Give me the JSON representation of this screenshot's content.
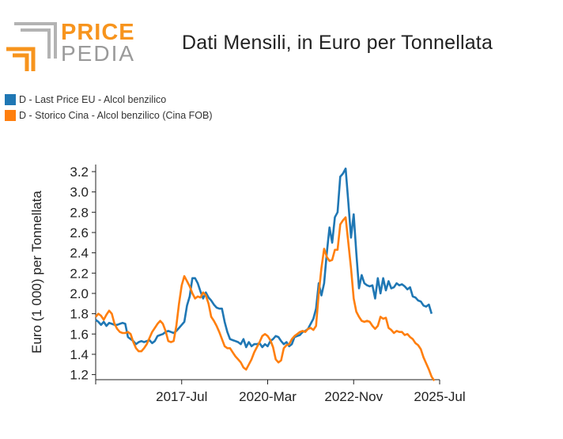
{
  "logo": {
    "line1": "PRICE",
    "line2": "PEDIA",
    "accent": "#f7941d",
    "gray": "#b3b3b3"
  },
  "title": "Dati Mensili, in Euro per Tonnellata",
  "legend": [
    {
      "label": "D - Last Price EU - Alcol benzilico",
      "color": "#1f77b4"
    },
    {
      "label": "D - Storico Cina - Alcol benzilico (Cina FOB)",
      "color": "#ff7f0e"
    }
  ],
  "chart_data": {
    "type": "line",
    "title": "Dati Mensili, in Euro per Tonnellata",
    "xlabel": "",
    "ylabel": "Euro (1 000) per Tonnellata",
    "x_ticks": [
      "2017-Jul",
      "2020-Mar",
      "2022-Nov",
      "2025-Jul"
    ],
    "y_ticks": [
      "1.2",
      "1.4",
      "1.6",
      "1.8",
      "2.0",
      "2.2",
      "2.4",
      "2.6",
      "2.8",
      "3.0",
      "3.2"
    ],
    "ylim": [
      1.15,
      3.27
    ],
    "xlim": [
      "2014-11",
      "2025-07"
    ],
    "grid": false,
    "legend_position": "top-left",
    "series": [
      {
        "name": "D - Last Price EU - Alcol benzilico",
        "color": "#1f77b4",
        "points": [
          [
            "2014-11",
            1.74
          ],
          [
            "2014-12",
            1.72
          ],
          [
            "2015-01",
            1.69
          ],
          [
            "2015-02",
            1.72
          ],
          [
            "2015-03",
            1.68
          ],
          [
            "2015-04",
            1.71
          ],
          [
            "2015-05",
            1.7
          ],
          [
            "2015-06",
            1.69
          ],
          [
            "2015-07",
            1.69
          ],
          [
            "2015-08",
            1.7
          ],
          [
            "2015-09",
            1.71
          ],
          [
            "2015-10",
            1.7
          ],
          [
            "2015-11",
            1.57
          ],
          [
            "2015-12",
            1.55
          ],
          [
            "2016-01",
            1.53
          ],
          [
            "2016-02",
            1.5
          ],
          [
            "2016-03",
            1.52
          ],
          [
            "2016-04",
            1.53
          ],
          [
            "2016-05",
            1.52
          ],
          [
            "2016-06",
            1.53
          ],
          [
            "2016-07",
            1.54
          ],
          [
            "2016-08",
            1.51
          ],
          [
            "2016-09",
            1.53
          ],
          [
            "2016-10",
            1.58
          ],
          [
            "2016-11",
            1.59
          ],
          [
            "2016-12",
            1.6
          ],
          [
            "2017-01",
            1.62
          ],
          [
            "2017-02",
            1.63
          ],
          [
            "2017-03",
            1.62
          ],
          [
            "2017-04",
            1.61
          ],
          [
            "2017-05",
            1.63
          ],
          [
            "2017-06",
            1.66
          ],
          [
            "2017-07",
            1.69
          ],
          [
            "2017-08",
            1.72
          ],
          [
            "2017-09",
            1.88
          ],
          [
            "2017-10",
            1.97
          ],
          [
            "2017-11",
            2.15
          ],
          [
            "2017-12",
            2.15
          ],
          [
            "2018-01",
            2.1
          ],
          [
            "2018-02",
            2.02
          ],
          [
            "2018-03",
            1.95
          ],
          [
            "2018-04",
            2.01
          ],
          [
            "2018-05",
            1.96
          ],
          [
            "2018-06",
            1.93
          ],
          [
            "2018-07",
            1.89
          ],
          [
            "2018-08",
            1.86
          ],
          [
            "2018-09",
            1.85
          ],
          [
            "2018-10",
            1.85
          ],
          [
            "2018-11",
            1.72
          ],
          [
            "2018-12",
            1.62
          ],
          [
            "2019-01",
            1.55
          ],
          [
            "2019-02",
            1.54
          ],
          [
            "2019-03",
            1.53
          ],
          [
            "2019-04",
            1.52
          ],
          [
            "2019-05",
            1.5
          ],
          [
            "2019-06",
            1.55
          ],
          [
            "2019-07",
            1.47
          ],
          [
            "2019-08",
            1.52
          ],
          [
            "2019-09",
            1.48
          ],
          [
            "2019-10",
            1.5
          ],
          [
            "2019-11",
            1.5
          ],
          [
            "2019-12",
            1.51
          ],
          [
            "2020-01",
            1.47
          ],
          [
            "2020-02",
            1.5
          ],
          [
            "2020-03",
            1.48
          ],
          [
            "2020-04",
            1.53
          ],
          [
            "2020-05",
            1.55
          ],
          [
            "2020-06",
            1.58
          ],
          [
            "2020-07",
            1.57
          ],
          [
            "2020-08",
            1.53
          ],
          [
            "2020-09",
            1.5
          ],
          [
            "2020-10",
            1.52
          ],
          [
            "2020-11",
            1.48
          ],
          [
            "2020-12",
            1.5
          ],
          [
            "2021-01",
            1.57
          ],
          [
            "2021-02",
            1.58
          ],
          [
            "2021-03",
            1.59
          ],
          [
            "2021-04",
            1.62
          ],
          [
            "2021-05",
            1.63
          ],
          [
            "2021-06",
            1.65
          ],
          [
            "2021-07",
            1.7
          ],
          [
            "2021-08",
            1.75
          ],
          [
            "2021-09",
            1.85
          ],
          [
            "2021-10",
            2.1
          ],
          [
            "2021-11",
            1.98
          ],
          [
            "2021-12",
            2.1
          ],
          [
            "2022-01",
            2.4
          ],
          [
            "2022-02",
            2.65
          ],
          [
            "2022-03",
            2.5
          ],
          [
            "2022-04",
            2.75
          ],
          [
            "2022-05",
            2.8
          ],
          [
            "2022-06",
            3.15
          ],
          [
            "2022-07",
            3.18
          ],
          [
            "2022-08",
            3.23
          ],
          [
            "2022-09",
            2.9
          ],
          [
            "2022-10",
            2.55
          ],
          [
            "2022-11",
            2.78
          ],
          [
            "2022-12",
            2.4
          ],
          [
            "2023-01",
            2.05
          ],
          [
            "2023-02",
            2.18
          ],
          [
            "2023-03",
            2.1
          ],
          [
            "2023-04",
            2.08
          ],
          [
            "2023-05",
            2.07
          ],
          [
            "2023-06",
            2.08
          ],
          [
            "2023-07",
            1.95
          ],
          [
            "2023-08",
            2.15
          ],
          [
            "2023-09",
            2.0
          ],
          [
            "2023-10",
            2.15
          ],
          [
            "2023-11",
            2.03
          ],
          [
            "2023-12",
            2.12
          ],
          [
            "2024-01",
            2.05
          ],
          [
            "2024-02",
            2.06
          ],
          [
            "2024-03",
            2.1
          ],
          [
            "2024-04",
            2.08
          ],
          [
            "2024-05",
            2.09
          ],
          [
            "2024-06",
            2.07
          ],
          [
            "2024-07",
            2.04
          ],
          [
            "2024-08",
            2.06
          ],
          [
            "2024-09",
            1.97
          ],
          [
            "2024-10",
            1.96
          ],
          [
            "2024-11",
            1.93
          ],
          [
            "2024-12",
            1.92
          ],
          [
            "2025-01",
            1.88
          ],
          [
            "2025-02",
            1.87
          ],
          [
            "2025-03",
            1.89
          ],
          [
            "2025-04",
            1.8
          ]
        ]
      },
      {
        "name": "D - Storico Cina - Alcol benzilico (Cina FOB)",
        "color": "#ff7f0e",
        "points": [
          [
            "2014-11",
            1.77
          ],
          [
            "2014-12",
            1.8
          ],
          [
            "2015-01",
            1.78
          ],
          [
            "2015-02",
            1.74
          ],
          [
            "2015-03",
            1.79
          ],
          [
            "2015-04",
            1.83
          ],
          [
            "2015-05",
            1.8
          ],
          [
            "2015-06",
            1.7
          ],
          [
            "2015-07",
            1.65
          ],
          [
            "2015-08",
            1.62
          ],
          [
            "2015-09",
            1.61
          ],
          [
            "2015-10",
            1.61
          ],
          [
            "2015-11",
            1.62
          ],
          [
            "2015-12",
            1.6
          ],
          [
            "2016-01",
            1.52
          ],
          [
            "2016-02",
            1.46
          ],
          [
            "2016-03",
            1.43
          ],
          [
            "2016-04",
            1.43
          ],
          [
            "2016-05",
            1.46
          ],
          [
            "2016-06",
            1.5
          ],
          [
            "2016-07",
            1.56
          ],
          [
            "2016-08",
            1.62
          ],
          [
            "2016-09",
            1.66
          ],
          [
            "2016-10",
            1.7
          ],
          [
            "2016-11",
            1.73
          ],
          [
            "2016-12",
            1.7
          ],
          [
            "2017-01",
            1.63
          ],
          [
            "2017-02",
            1.53
          ],
          [
            "2017-03",
            1.52
          ],
          [
            "2017-04",
            1.53
          ],
          [
            "2017-05",
            1.68
          ],
          [
            "2017-06",
            1.9
          ],
          [
            "2017-07",
            2.08
          ],
          [
            "2017-08",
            2.17
          ],
          [
            "2017-09",
            2.12
          ],
          [
            "2017-10",
            2.07
          ],
          [
            "2017-11",
            2.0
          ],
          [
            "2017-12",
            1.95
          ],
          [
            "2018-01",
            1.97
          ],
          [
            "2018-02",
            1.96
          ],
          [
            "2018-03",
            2.01
          ],
          [
            "2018-04",
            1.98
          ],
          [
            "2018-05",
            1.9
          ],
          [
            "2018-06",
            1.77
          ],
          [
            "2018-07",
            1.73
          ],
          [
            "2018-08",
            1.68
          ],
          [
            "2018-09",
            1.62
          ],
          [
            "2018-10",
            1.55
          ],
          [
            "2018-11",
            1.48
          ],
          [
            "2018-12",
            1.46
          ],
          [
            "2019-01",
            1.46
          ],
          [
            "2019-02",
            1.42
          ],
          [
            "2019-03",
            1.38
          ],
          [
            "2019-04",
            1.35
          ],
          [
            "2019-05",
            1.32
          ],
          [
            "2019-06",
            1.27
          ],
          [
            "2019-07",
            1.25
          ],
          [
            "2019-08",
            1.3
          ],
          [
            "2019-09",
            1.35
          ],
          [
            "2019-10",
            1.42
          ],
          [
            "2019-11",
            1.47
          ],
          [
            "2019-12",
            1.52
          ],
          [
            "2020-01",
            1.58
          ],
          [
            "2020-02",
            1.6
          ],
          [
            "2020-03",
            1.58
          ],
          [
            "2020-04",
            1.54
          ],
          [
            "2020-05",
            1.47
          ],
          [
            "2020-06",
            1.35
          ],
          [
            "2020-07",
            1.32
          ],
          [
            "2020-08",
            1.34
          ],
          [
            "2020-09",
            1.46
          ],
          [
            "2020-10",
            1.49
          ],
          [
            "2020-11",
            1.5
          ],
          [
            "2020-12",
            1.55
          ],
          [
            "2021-01",
            1.58
          ],
          [
            "2021-02",
            1.6
          ],
          [
            "2021-03",
            1.62
          ],
          [
            "2021-04",
            1.63
          ],
          [
            "2021-05",
            1.62
          ],
          [
            "2021-06",
            1.65
          ],
          [
            "2021-07",
            1.66
          ],
          [
            "2021-08",
            1.64
          ],
          [
            "2021-09",
            1.68
          ],
          [
            "2021-10",
            2.0
          ],
          [
            "2021-11",
            2.25
          ],
          [
            "2021-12",
            2.44
          ],
          [
            "2022-01",
            2.36
          ],
          [
            "2022-02",
            2.32
          ],
          [
            "2022-03",
            2.33
          ],
          [
            "2022-04",
            2.43
          ],
          [
            "2022-05",
            2.43
          ],
          [
            "2022-06",
            2.68
          ],
          [
            "2022-07",
            2.72
          ],
          [
            "2022-08",
            2.75
          ],
          [
            "2022-09",
            2.5
          ],
          [
            "2022-10",
            2.25
          ],
          [
            "2022-11",
            1.95
          ],
          [
            "2022-12",
            1.82
          ],
          [
            "2023-01",
            1.77
          ],
          [
            "2023-02",
            1.73
          ],
          [
            "2023-03",
            1.72
          ],
          [
            "2023-04",
            1.73
          ],
          [
            "2023-05",
            1.72
          ],
          [
            "2023-06",
            1.68
          ],
          [
            "2023-07",
            1.65
          ],
          [
            "2023-08",
            1.68
          ],
          [
            "2023-09",
            1.77
          ],
          [
            "2023-10",
            1.75
          ],
          [
            "2023-11",
            1.76
          ],
          [
            "2023-12",
            1.66
          ],
          [
            "2024-01",
            1.64
          ],
          [
            "2024-02",
            1.61
          ],
          [
            "2024-03",
            1.63
          ],
          [
            "2024-04",
            1.62
          ],
          [
            "2024-05",
            1.62
          ],
          [
            "2024-06",
            1.59
          ],
          [
            "2024-07",
            1.6
          ],
          [
            "2024-08",
            1.57
          ],
          [
            "2024-09",
            1.55
          ],
          [
            "2024-10",
            1.51
          ],
          [
            "2024-11",
            1.49
          ],
          [
            "2024-12",
            1.45
          ],
          [
            "2025-01",
            1.37
          ],
          [
            "2025-02",
            1.31
          ],
          [
            "2025-03",
            1.25
          ],
          [
            "2025-04",
            1.18
          ],
          [
            "2025-05",
            1.14
          ]
        ]
      }
    ]
  }
}
